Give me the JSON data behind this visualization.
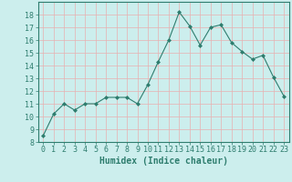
{
  "x": [
    0,
    1,
    2,
    3,
    4,
    5,
    6,
    7,
    8,
    9,
    10,
    11,
    12,
    13,
    14,
    15,
    16,
    17,
    18,
    19,
    20,
    21,
    22,
    23
  ],
  "y": [
    8.5,
    10.2,
    11.0,
    10.5,
    11.0,
    11.0,
    11.5,
    11.5,
    11.5,
    11.0,
    12.5,
    14.3,
    16.0,
    18.2,
    17.1,
    15.6,
    17.0,
    17.2,
    15.8,
    15.1,
    14.5,
    14.8,
    13.1,
    11.6
  ],
  "xlabel": "Humidex (Indice chaleur)",
  "ylabel": "",
  "ylim": [
    8,
    19
  ],
  "xlim": [
    -0.5,
    23.5
  ],
  "yticks": [
    8,
    9,
    10,
    11,
    12,
    13,
    14,
    15,
    16,
    17,
    18
  ],
  "xticks": [
    0,
    1,
    2,
    3,
    4,
    5,
    6,
    7,
    8,
    9,
    10,
    11,
    12,
    13,
    14,
    15,
    16,
    17,
    18,
    19,
    20,
    21,
    22,
    23
  ],
  "line_color": "#2e7d6e",
  "marker_color": "#2e7d6e",
  "bg_color": "#cceeed",
  "grid_color": "#e8b0b0",
  "axis_color": "#2e7d6e",
  "tick_color": "#2e7d6e",
  "label_color": "#2e7d6e",
  "xlabel_fontsize": 7,
  "tick_fontsize": 6
}
